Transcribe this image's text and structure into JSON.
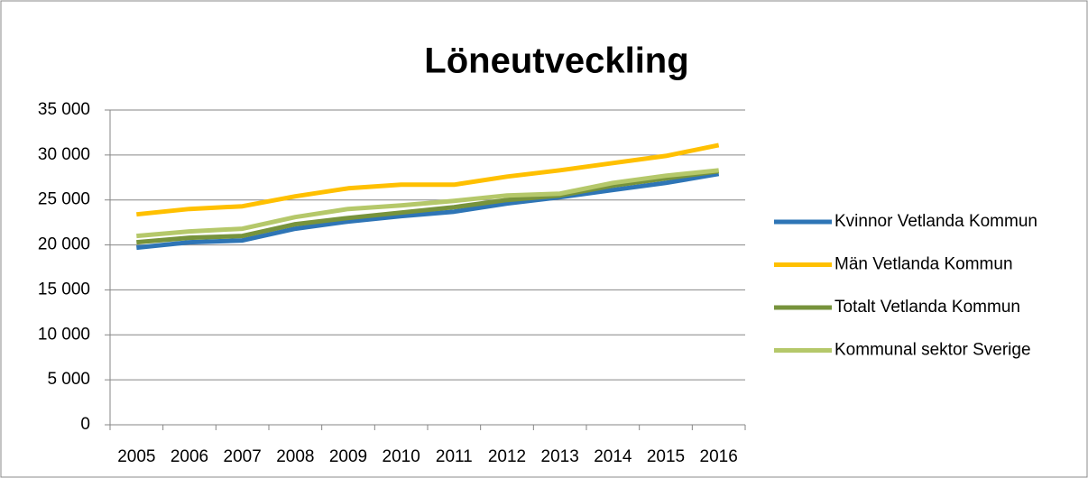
{
  "chart_data": {
    "type": "line",
    "title": "Löneutveckling",
    "categories": [
      "2005",
      "2006",
      "2007",
      "2008",
      "2009",
      "2010",
      "2011",
      "2012",
      "2013",
      "2014",
      "2015",
      "2016"
    ],
    "series": [
      {
        "name": "Kvinnor Vetlanda Kommun",
        "color": "#2e75b6",
        "values": [
          19700,
          20300,
          20500,
          21800,
          22600,
          23200,
          23700,
          24600,
          25300,
          26100,
          26900,
          27900
        ]
      },
      {
        "name": "Män Vetlanda Kommun",
        "color": "#ffc000",
        "values": [
          23400,
          24000,
          24300,
          25400,
          26300,
          26700,
          26700,
          27600,
          28300,
          29100,
          29900,
          31100
        ]
      },
      {
        "name": "Totalt Vetlanda Kommun",
        "color": "#77933c",
        "values": [
          20300,
          20800,
          21000,
          22300,
          23000,
          23600,
          24200,
          25000,
          25500,
          26600,
          27400,
          28200
        ]
      },
      {
        "name": "Kommunal sektor Sverige",
        "color": "#b5c86a",
        "values": [
          21000,
          21500,
          21800,
          23100,
          24000,
          24400,
          24900,
          25500,
          25700,
          26900,
          27700,
          28300
        ]
      }
    ],
    "ylim": [
      0,
      35000
    ],
    "yticks": [
      {
        "value": 0,
        "label": "0"
      },
      {
        "value": 5000,
        "label": "5 000"
      },
      {
        "value": 10000,
        "label": "10 000"
      },
      {
        "value": 15000,
        "label": "15 000"
      },
      {
        "value": 20000,
        "label": "20 000"
      },
      {
        "value": 25000,
        "label": "25 000"
      },
      {
        "value": 30000,
        "label": "30 000"
      },
      {
        "value": 35000,
        "label": "35 000"
      }
    ],
    "grid": true,
    "legend": "right"
  }
}
